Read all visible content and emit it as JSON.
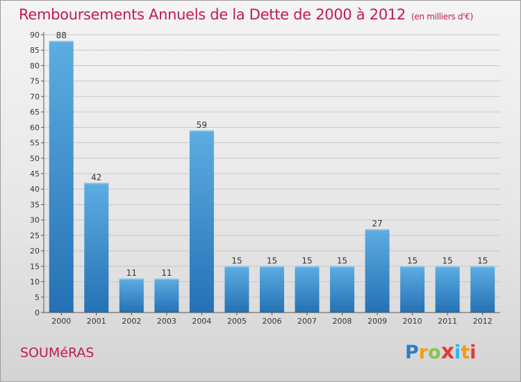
{
  "header": {
    "title": "Remboursements Annuels de la Dette de 2000 à 2012",
    "subtitle": "(en milliers d'€)"
  },
  "footer": {
    "commune": "SOUMéRAS",
    "logo_letters": [
      "P",
      "r",
      "o",
      "x",
      "i",
      "t",
      "i"
    ],
    "logo_colors": [
      "#2e7cc6",
      "#f39c12",
      "#8bc34a",
      "#e53935",
      "#29b6f6",
      "#f39c12",
      "#e53935"
    ]
  },
  "colors": {
    "bar_top": "#5dade2",
    "bar_bottom": "#2471b5",
    "grid": "#c8c8c8",
    "title": "#c2185b"
  },
  "chart_data": {
    "type": "bar",
    "title": "Remboursements Annuels de la Dette de 2000 à 2012",
    "subtitle": "(en milliers d'€)",
    "categories": [
      "2000",
      "2001",
      "2002",
      "2003",
      "2004",
      "2005",
      "2006",
      "2007",
      "2008",
      "2009",
      "2010",
      "2011",
      "2012"
    ],
    "values": [
      88,
      42,
      11,
      11,
      59,
      15,
      15,
      15,
      15,
      27,
      15,
      15,
      15
    ],
    "ylim": [
      0,
      90
    ],
    "yticks": [
      0,
      5,
      10,
      15,
      20,
      25,
      30,
      35,
      40,
      45,
      50,
      55,
      60,
      65,
      70,
      75,
      80,
      85,
      90
    ],
    "grid": true,
    "legend": "none"
  }
}
